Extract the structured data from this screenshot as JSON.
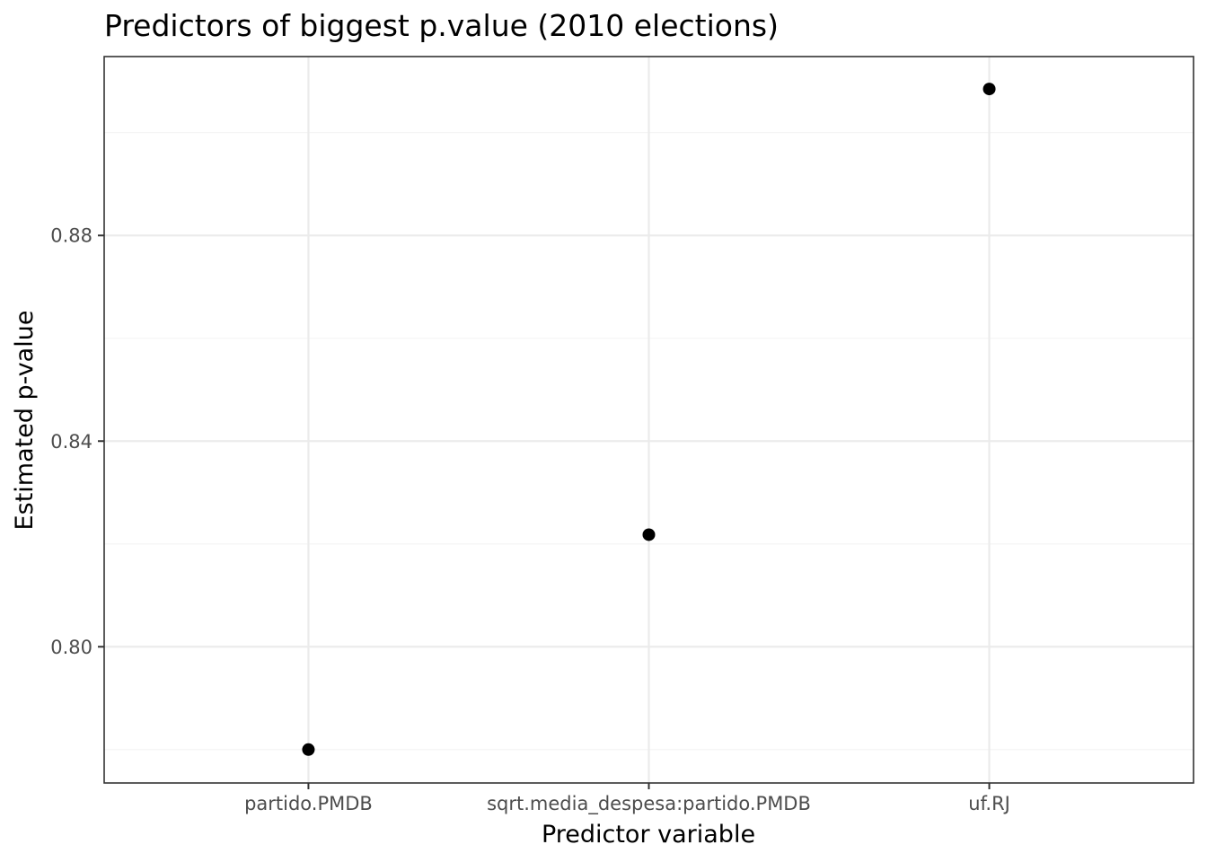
{
  "chart_data": {
    "type": "scatter",
    "title": "Predictors of biggest p.value (2010 elections)",
    "xlabel": "Predictor variable",
    "ylabel": "Estimated p-value",
    "categories": [
      "partido.PMDB",
      "sqrt.media_despesa:partido.PMDB",
      "uf.RJ"
    ],
    "values": [
      0.78,
      0.8218,
      0.9085
    ],
    "ylim": [
      0.7735,
      0.9148
    ],
    "yticks": [
      0.8,
      0.84,
      0.88
    ],
    "ytick_labels": [
      "0.80",
      "0.84",
      "0.88"
    ],
    "grid": true,
    "legend": "none",
    "colors": {
      "point": "#000000",
      "grid_major": "#ebebeb",
      "grid_minor": "#f3f3f3",
      "panel_border": "#333333",
      "tick_text": "#4d4d4d"
    }
  }
}
